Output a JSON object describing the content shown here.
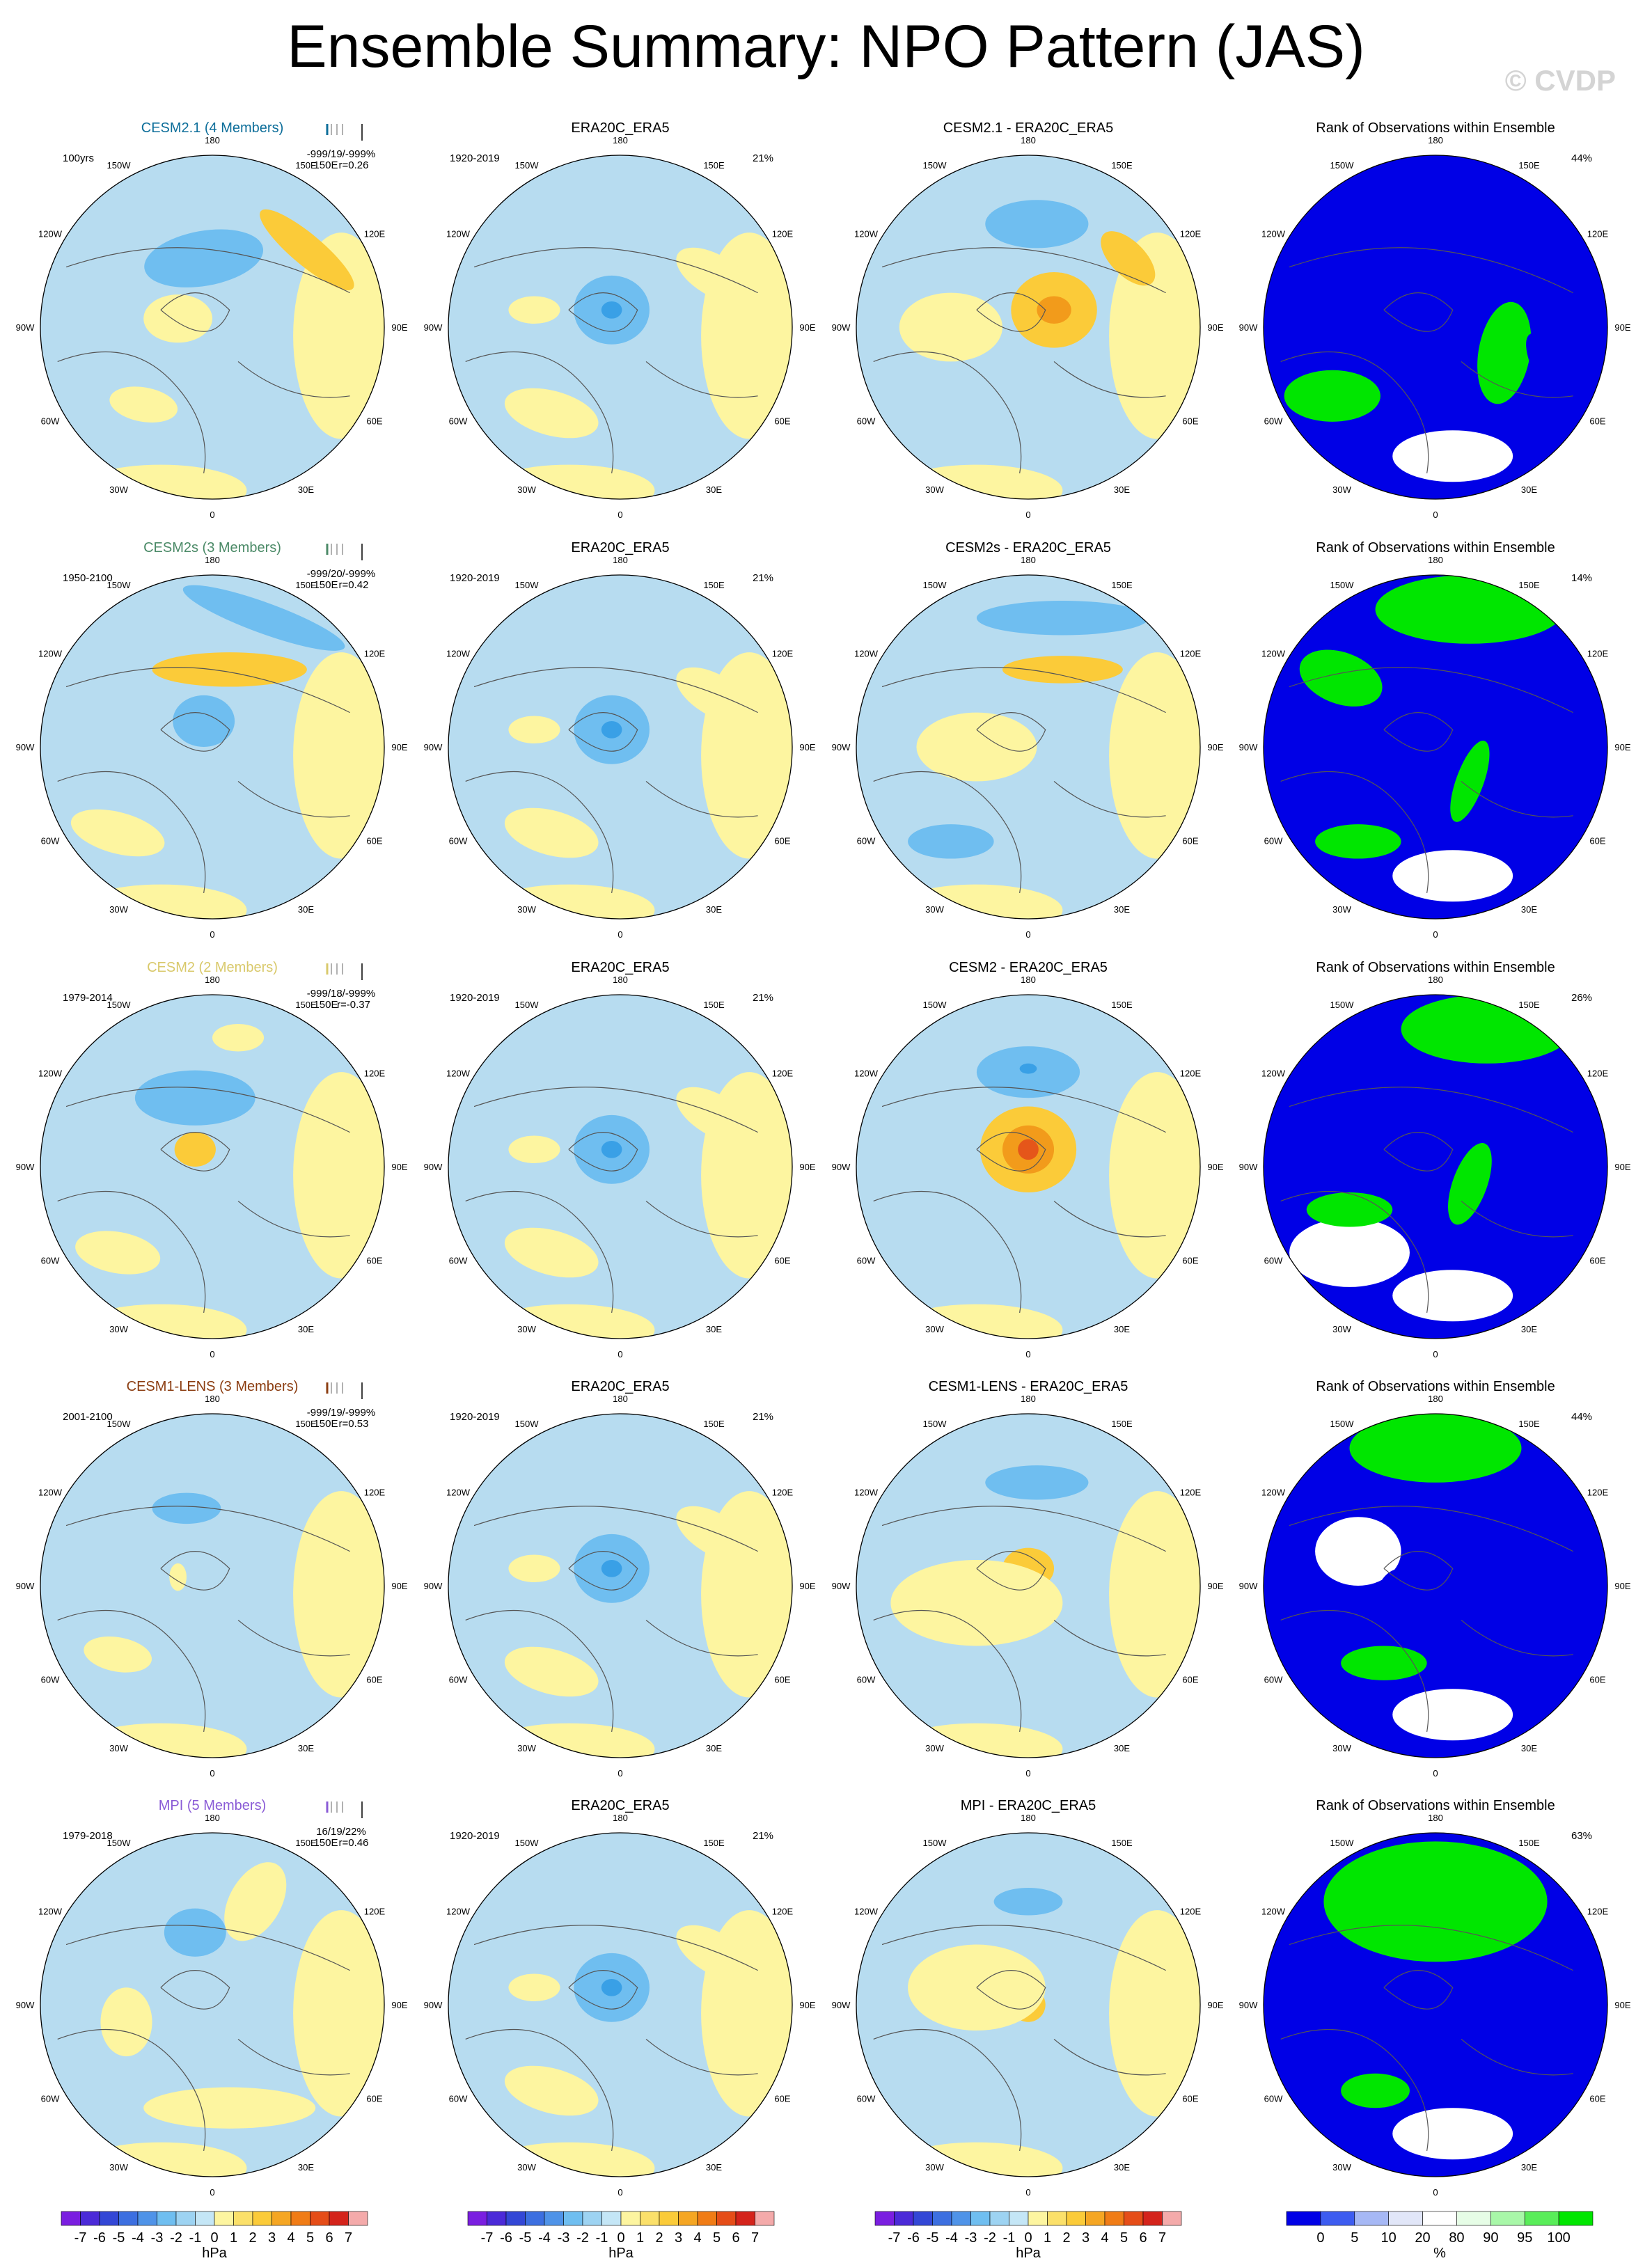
{
  "title": "Ensemble Summary: NPO Pattern (JAS)",
  "watermark": "© CVDP",
  "lon_labels": [
    "180",
    "150E",
    "120E",
    "90E",
    "60E",
    "30E",
    "0",
    "30W",
    "60W",
    "90W",
    "120W",
    "150W"
  ],
  "colors": {
    "ocean_pos": "#fdf5a0",
    "ocean_neg": "#b7dcf0",
    "neg_mid": "#6fbef0",
    "neg_strong": "#39a0e6",
    "pos_mid": "#fbcb39",
    "pos_strong": "#f29b1b",
    "pos_max": "#e5561a",
    "rank_blue": "#0000e6",
    "rank_green": "#00e600",
    "rank_pale": "#e6fde6"
  },
  "rows": [
    {
      "model": "CESM2.1 (4 Members)",
      "model_color": "#0d6e9a",
      "period": "100yrs",
      "stats_line1": "-999/19/-999%",
      "stats_line2": "150E",
      "stats_r": "r=0.26",
      "obs_title": "ERA20C_ERA5",
      "obs_period": "1920-2019",
      "obs_pct": "21%",
      "diff_title": "CESM2.1 - ERA20C_ERA5",
      "rank_title": "Rank of Observations within Ensemble",
      "rank_pct": "44%"
    },
    {
      "model": "CESM2s (3 Members)",
      "model_color": "#4b8a67",
      "period": "1950-2100",
      "stats_line1": "-999/20/-999%",
      "stats_line2": "150E",
      "stats_r": "r=0.42",
      "obs_title": "ERA20C_ERA5",
      "obs_period": "1920-2019",
      "obs_pct": "21%",
      "diff_title": "CESM2s - ERA20C_ERA5",
      "rank_title": "Rank of Observations within Ensemble",
      "rank_pct": "14%"
    },
    {
      "model": "CESM2 (2 Members)",
      "model_color": "#d9c96b",
      "period": "1979-2014",
      "stats_line1": "-999/18/-999%",
      "stats_line2": "150E",
      "stats_r": "r=-0.37",
      "obs_title": "ERA20C_ERA5",
      "obs_period": "1920-2019",
      "obs_pct": "21%",
      "diff_title": "CESM2 - ERA20C_ERA5",
      "rank_title": "Rank of Observations within Ensemble",
      "rank_pct": "26%"
    },
    {
      "model": "CESM1-LENS (3 Members)",
      "model_color": "#8b3d11",
      "period": "2001-2100",
      "stats_line1": "-999/19/-999%",
      "stats_line2": "150E",
      "stats_r": "r=0.53",
      "obs_title": "ERA20C_ERA5",
      "obs_period": "1920-2019",
      "obs_pct": "21%",
      "diff_title": "CESM1-LENS - ERA20C_ERA5",
      "rank_title": "Rank of Observations within Ensemble",
      "rank_pct": "44%"
    },
    {
      "model": "MPI (5 Members)",
      "model_color": "#8a5bd6",
      "period": "1979-2018",
      "stats_line1": "16/19/22%",
      "stats_line2": "150E",
      "stats_r": "r=0.46",
      "obs_title": "ERA20C_ERA5",
      "obs_period": "1920-2019",
      "obs_pct": "21%",
      "diff_title": "MPI - ERA20C_ERA5",
      "rank_title": "Rank of Observations within Ensemble",
      "rank_pct": "63%"
    }
  ],
  "colorbar": {
    "unit": "hPa",
    "labels": [
      "-7",
      "-6",
      "-5",
      "-4",
      "-3",
      "-2",
      "-1",
      "0",
      "1",
      "2",
      "3",
      "4",
      "5",
      "6",
      "7"
    ],
    "colors": [
      "#7a1ee0",
      "#4b2ad8",
      "#3347d6",
      "#3c6fe0",
      "#4f93e8",
      "#6fbef0",
      "#9dd3f2",
      "#c4e6f6",
      "#fdf5a0",
      "#fbe06a",
      "#fbcb39",
      "#f5a623",
      "#f07c16",
      "#e54d18",
      "#d4231b",
      "#f4aaaa"
    ]
  },
  "rank_colorbar": {
    "unit": "%",
    "labels": [
      "0",
      "5",
      "10",
      "20",
      "80",
      "90",
      "95",
      "100"
    ],
    "colors": [
      "#0000e6",
      "#3d5cf0",
      "#a6b8f5",
      "#e1e6f8",
      "#ffffff",
      "#e6fde6",
      "#a8f7a8",
      "#59ed59",
      "#00e600"
    ]
  },
  "chart_data": [
    {
      "type": "heatmap",
      "row": 1,
      "panel": "model",
      "title": "CESM2.1 (4 Members)",
      "period": "100yrs",
      "pattern_correlation": 0.26,
      "unit": "hPa"
    },
    {
      "type": "heatmap",
      "row": 1,
      "panel": "obs",
      "title": "ERA20C_ERA5",
      "period": "1920-2019",
      "variance_explained": "21%",
      "unit": "hPa"
    },
    {
      "type": "heatmap",
      "row": 1,
      "panel": "difference",
      "title": "CESM2.1 - ERA20C_ERA5",
      "unit": "hPa"
    },
    {
      "type": "heatmap",
      "row": 1,
      "panel": "rank",
      "title": "Rank of Observations within Ensemble",
      "value": "44%",
      "unit": "%"
    },
    {
      "type": "heatmap",
      "row": 2,
      "panel": "model",
      "title": "CESM2s (3 Members)",
      "period": "1950-2100",
      "pattern_correlation": 0.42,
      "unit": "hPa"
    },
    {
      "type": "heatmap",
      "row": 2,
      "panel": "obs",
      "title": "ERA20C_ERA5",
      "period": "1920-2019",
      "variance_explained": "21%",
      "unit": "hPa"
    },
    {
      "type": "heatmap",
      "row": 2,
      "panel": "difference",
      "title": "CESM2s - ERA20C_ERA5",
      "unit": "hPa"
    },
    {
      "type": "heatmap",
      "row": 2,
      "panel": "rank",
      "title": "Rank of Observations within Ensemble",
      "value": "14%",
      "unit": "%"
    },
    {
      "type": "heatmap",
      "row": 3,
      "panel": "model",
      "title": "CESM2 (2 Members)",
      "period": "1979-2014",
      "pattern_correlation": -0.37,
      "unit": "hPa"
    },
    {
      "type": "heatmap",
      "row": 3,
      "panel": "obs",
      "title": "ERA20C_ERA5",
      "period": "1920-2019",
      "variance_explained": "21%",
      "unit": "hPa"
    },
    {
      "type": "heatmap",
      "row": 3,
      "panel": "difference",
      "title": "CESM2 - ERA20C_ERA5",
      "unit": "hPa"
    },
    {
      "type": "heatmap",
      "row": 3,
      "panel": "rank",
      "title": "Rank of Observations within Ensemble",
      "value": "26%",
      "unit": "%"
    },
    {
      "type": "heatmap",
      "row": 4,
      "panel": "model",
      "title": "CESM1-LENS (3 Members)",
      "period": "2001-2100",
      "pattern_correlation": 0.53,
      "unit": "hPa"
    },
    {
      "type": "heatmap",
      "row": 4,
      "panel": "obs",
      "title": "ERA20C_ERA5",
      "period": "1920-2019",
      "variance_explained": "21%",
      "unit": "hPa"
    },
    {
      "type": "heatmap",
      "row": 4,
      "panel": "difference",
      "title": "CESM1-LENS - ERA20C_ERA5",
      "unit": "hPa"
    },
    {
      "type": "heatmap",
      "row": 4,
      "panel": "rank",
      "title": "Rank of Observations within Ensemble",
      "value": "44%",
      "unit": "%"
    },
    {
      "type": "heatmap",
      "row": 5,
      "panel": "model",
      "title": "MPI (5 Members)",
      "period": "1979-2018",
      "pattern_correlation": 0.46,
      "unit": "hPa"
    },
    {
      "type": "heatmap",
      "row": 5,
      "panel": "obs",
      "title": "ERA20C_ERA5",
      "period": "1920-2019",
      "variance_explained": "21%",
      "unit": "hPa"
    },
    {
      "type": "heatmap",
      "row": 5,
      "panel": "difference",
      "title": "MPI - ERA20C_ERA5",
      "unit": "hPa"
    },
    {
      "type": "heatmap",
      "row": 5,
      "panel": "rank",
      "title": "Rank of Observations within Ensemble",
      "value": "63%",
      "unit": "%"
    }
  ]
}
